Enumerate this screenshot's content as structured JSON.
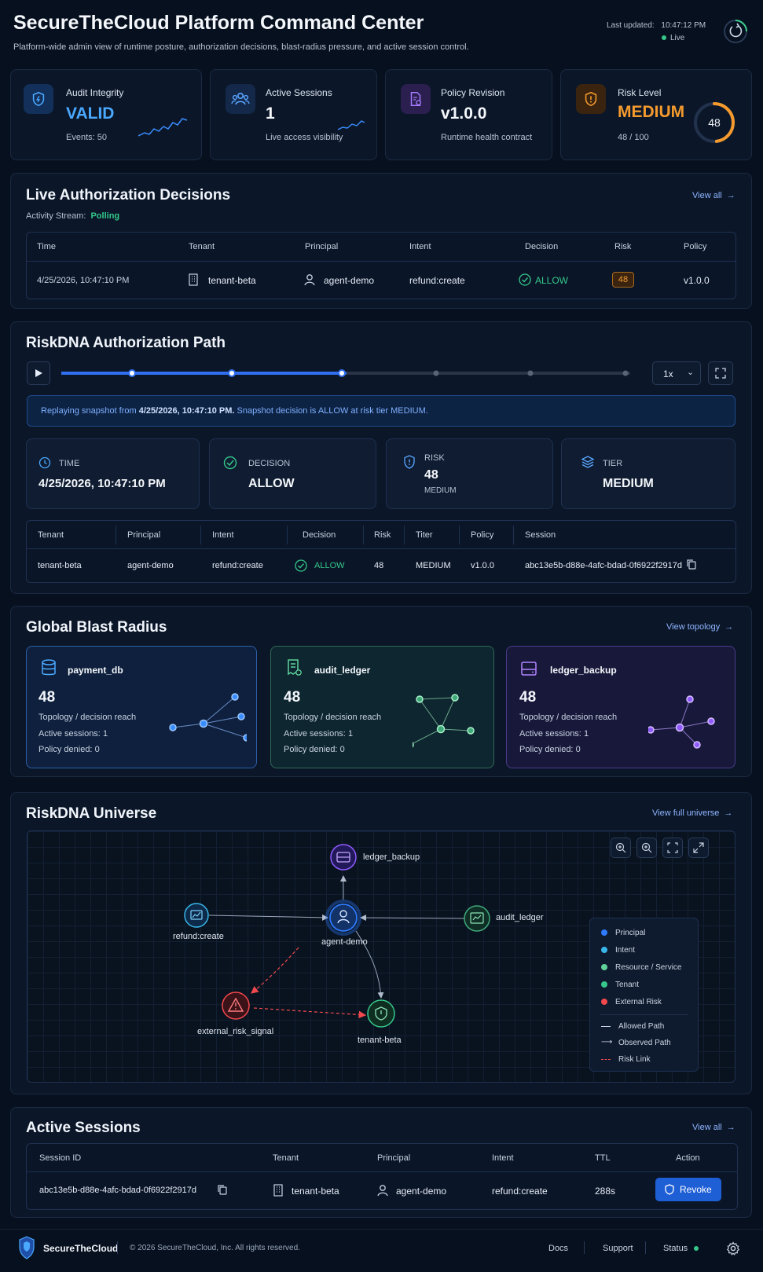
{
  "header": {
    "title": "SecureTheCloud Platform Command Center",
    "subtitle": "Platform-wide admin view of runtime posture, authorization decisions, blast-radius pressure, and active session control.",
    "last_updated_label": "Last updated:",
    "last_updated_time": "10:47:12 PM",
    "live_label": "Live"
  },
  "kpis": {
    "audit": {
      "label": "Audit Integrity",
      "value": "VALID",
      "sub": "Events: 50"
    },
    "sessions": {
      "label": "Active Sessions",
      "value": "1",
      "sub": "Live access visibility"
    },
    "policy": {
      "label": "Policy Revision",
      "value": "v1.0.0",
      "sub": "Runtime health contract"
    },
    "risk": {
      "label": "Risk Level",
      "value": "MEDIUM",
      "sub": "48 / 100",
      "gauge_value": "48",
      "gauge_fraction": 0.48
    }
  },
  "decisions": {
    "title": "Live Authorization Decisions",
    "stream_label": "Activity Stream:",
    "stream_value": "Polling",
    "view_all": "View all",
    "columns": [
      "Time",
      "Tenant",
      "Principal",
      "Intent",
      "Decision",
      "Risk",
      "Policy"
    ],
    "row": {
      "time": "4/25/2026, 10:47:10 PM",
      "tenant": "tenant-beta",
      "principal": "agent-demo",
      "intent": "refund:create",
      "decision": "ALLOW",
      "risk": "48",
      "policy": "v1.0.0"
    }
  },
  "path": {
    "title": "RiskDNA Authorization Path",
    "speed": "1x",
    "progress_fraction": 0.5,
    "banner_pre": "Replaying snapshot from ",
    "banner_time": "4/25/2026, 10:47:10 PM.",
    "banner_post": " Snapshot decision is ALLOW at risk tier MEDIUM.",
    "stats": {
      "time": {
        "label": "TIME",
        "value": "4/25/2026, 10:47:10 PM"
      },
      "decision": {
        "label": "DECISION",
        "value": "ALLOW"
      },
      "risk": {
        "label": "RISK",
        "value": "48",
        "sub": "MEDIUM"
      },
      "tier": {
        "label": "TIER",
        "value": "MEDIUM"
      }
    },
    "columns": [
      "Tenant",
      "Principal",
      "Intent",
      "Decision",
      "Risk",
      "Titer",
      "Policy",
      "Session"
    ],
    "row": {
      "tenant": "tenant-beta",
      "principal": "agent-demo",
      "intent": "refund:create",
      "decision": "ALLOW",
      "risk": "48",
      "tier": "MEDIUM",
      "policy": "v1.0.0",
      "session": "abc13e5b-d88e-4afc-bdad-0f6922f2917d"
    }
  },
  "blast": {
    "title": "Global Blast Radius",
    "view_topology": "View topology",
    "cards": [
      {
        "name": "payment_db",
        "value": "48",
        "reach_label": "Topology / decision reach",
        "sessions_label": "Active sessions:",
        "sessions": "1",
        "denied_label": "Policy denied:",
        "denied": "0",
        "color": "#3a8dff"
      },
      {
        "name": "audit_ledger",
        "value": "48",
        "reach_label": "Topology / decision reach",
        "sessions_label": "Active sessions:",
        "sessions": "1",
        "denied_label": "Policy denied:",
        "denied": "0",
        "color": "#5fd39a"
      },
      {
        "name": "ledger_backup",
        "value": "48",
        "reach_label": "Topology / decision reach",
        "sessions_label": "Active sessions:",
        "sessions": "1",
        "denied_label": "Policy denied:",
        "denied": "0",
        "color": "#9b6bff"
      }
    ]
  },
  "universe": {
    "title": "RiskDNA Universe",
    "view_full": "View full universe",
    "nodes": {
      "ledger_backup": "ledger_backup",
      "refund_create": "refund:create",
      "agent_demo": "agent-demo",
      "audit_ledger": "audit_ledger",
      "external_risk": "external_risk_signal",
      "tenant_beta": "tenant-beta"
    },
    "legend": {
      "principal": "Principal",
      "intent": "Intent",
      "resource": "Resource / Service",
      "tenant": "Tenant",
      "external": "External Risk",
      "allowed": "Allowed Path",
      "observed": "Observed Path",
      "risk_link": "Risk Link"
    },
    "colors": {
      "principal": "#2f7bff",
      "intent": "#38b6e8",
      "resource": "#5fd39a",
      "tenant": "#35c88a",
      "external": "#f0484e"
    }
  },
  "sessions": {
    "title": "Active Sessions",
    "view_all": "View all",
    "columns": [
      "Session ID",
      "Tenant",
      "Principal",
      "Intent",
      "TTL",
      "Action"
    ],
    "row": {
      "id": "abc13e5b-d88e-4afc-bdad-0f6922f2917d",
      "tenant": "tenant-beta",
      "principal": "agent-demo",
      "intent": "refund:create",
      "ttl": "288s",
      "action": "Revoke"
    }
  },
  "footer": {
    "brand": "SecureTheCloud",
    "copyright": "© 2026 SecureTheCloud, Inc. All rights reserved.",
    "docs": "Docs",
    "support": "Support",
    "status": "Status"
  }
}
